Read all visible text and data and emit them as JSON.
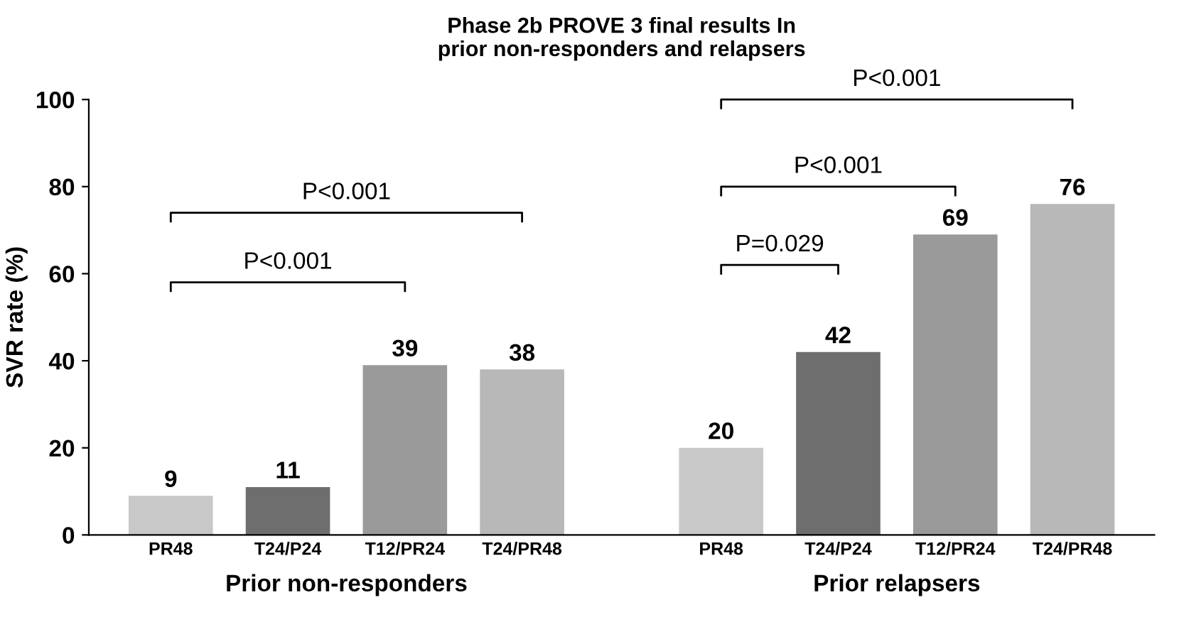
{
  "chart_data": {
    "type": "bar",
    "title": "Phase 2b PROVE 3 final results In\nprior non-responders and relapsers",
    "ylabel": "SVR rate (%)",
    "categories": [
      "PR48",
      "T24/P24",
      "T12/PR24",
      "T24/PR48",
      "PR48",
      "T24/P24",
      "T12/PR24",
      "T24/PR48"
    ],
    "values": [
      9,
      11,
      39,
      38,
      20,
      42,
      69,
      76
    ],
    "colors": [
      "#c8c8c8",
      "#6e6e6e",
      "#9a9a9a",
      "#b8b8b8",
      "#c8c8c8",
      "#6e6e6e",
      "#9a9a9a",
      "#b8b8b8"
    ],
    "data_labels": true,
    "ylim": [
      0,
      100
    ],
    "yticks": [
      0,
      20,
      40,
      60,
      80,
      100
    ],
    "grid": false,
    "annotations": [
      "Prior non-responders",
      "Prior relapsers",
      "P<0.001",
      "P<0.001",
      "P=0.029",
      "P<0.001",
      "P<0.001"
    ]
  }
}
